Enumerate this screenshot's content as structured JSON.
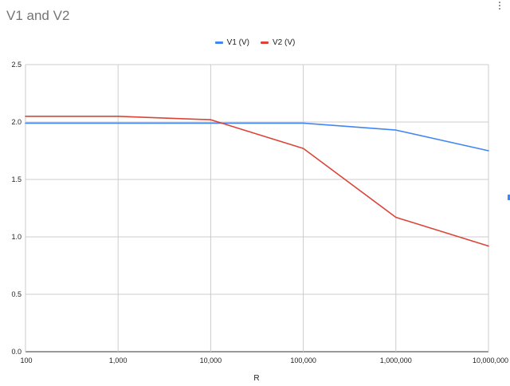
{
  "chart_data": {
    "type": "line",
    "title": "V1 and V2",
    "xlabel": "R",
    "ylabel": "",
    "x_scale": "log",
    "x": [
      100,
      1000,
      2000,
      10000,
      100000,
      1000000,
      10000000
    ],
    "x_tick_labels": [
      "100",
      "1,000",
      "10,000",
      "100,000",
      "1,000,000",
      "10,000,000"
    ],
    "y_tick_labels": [
      "0.0",
      "0.5",
      "1.0",
      "1.5",
      "2.0",
      "2.5"
    ],
    "ylim": [
      0,
      2.5
    ],
    "xlim": [
      100,
      10000000
    ],
    "grid": true,
    "legend_position": "top",
    "series": [
      {
        "name": "V1 (V)",
        "color": "#4285f4",
        "values": [
          1.99,
          1.99,
          1.99,
          1.99,
          1.99,
          1.93,
          1.75
        ]
      },
      {
        "name": "V2 (V)",
        "color": "#db4437",
        "values": [
          2.05,
          2.05,
          2.04,
          2.02,
          1.77,
          1.17,
          0.92
        ]
      }
    ]
  }
}
